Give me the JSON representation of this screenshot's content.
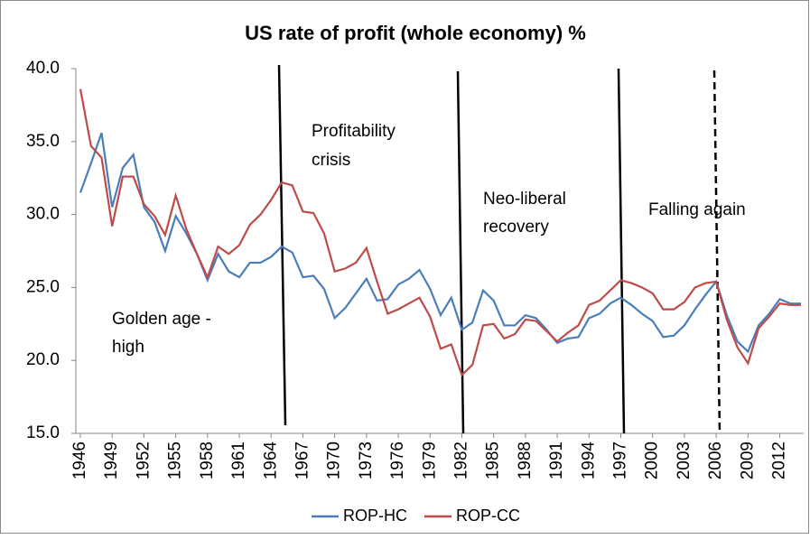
{
  "chart_data": {
    "type": "line",
    "title": "US rate of profit (whole economy) %",
    "x": [
      1946,
      1947,
      1948,
      1949,
      1950,
      1951,
      1952,
      1953,
      1954,
      1955,
      1956,
      1957,
      1958,
      1959,
      1960,
      1961,
      1962,
      1963,
      1964,
      1965,
      1966,
      1967,
      1968,
      1969,
      1970,
      1971,
      1972,
      1973,
      1974,
      1975,
      1976,
      1977,
      1978,
      1979,
      1980,
      1981,
      1982,
      1983,
      1984,
      1985,
      1986,
      1987,
      1988,
      1989,
      1990,
      1991,
      1992,
      1993,
      1994,
      1995,
      1996,
      1997,
      1998,
      1999,
      2000,
      2001,
      2002,
      2003,
      2004,
      2005,
      2006,
      2007,
      2008,
      2009,
      2010,
      2011,
      2012,
      2013,
      2014
    ],
    "series": [
      {
        "name": "ROP-HC",
        "color": "#4a7ebb",
        "values": [
          31.5,
          33.5,
          35.6,
          30.5,
          33.2,
          34.1,
          30.5,
          29.5,
          27.5,
          29.9,
          28.7,
          27.3,
          25.5,
          27.3,
          26.1,
          25.7,
          26.7,
          26.7,
          27.1,
          27.8,
          27.4,
          25.7,
          25.8,
          24.9,
          22.9,
          23.6,
          24.6,
          25.6,
          24.1,
          24.2,
          25.2,
          25.6,
          26.2,
          24.9,
          23.1,
          24.3,
          22.1,
          22.6,
          24.8,
          24.1,
          22.4,
          22.4,
          23.1,
          22.9,
          22.1,
          21.2,
          21.5,
          21.6,
          22.9,
          23.2,
          23.9,
          24.3,
          23.8,
          23.2,
          22.7,
          21.6,
          21.7,
          22.4,
          23.5,
          24.5,
          25.4,
          23.1,
          21.3,
          20.6,
          22.4,
          23.2,
          24.2,
          23.9,
          23.9
        ]
      },
      {
        "name": "ROP-CC",
        "color": "#be4b48",
        "values": [
          38.6,
          34.7,
          33.9,
          29.2,
          32.6,
          32.6,
          30.7,
          29.9,
          28.6,
          31.3,
          29.0,
          27.3,
          25.7,
          27.8,
          27.3,
          27.9,
          29.3,
          30.0,
          31.0,
          32.2,
          32.0,
          30.2,
          30.1,
          28.7,
          26.1,
          26.3,
          26.7,
          27.7,
          25.4,
          23.2,
          23.5,
          23.9,
          24.3,
          23.0,
          20.8,
          21.1,
          19.0,
          19.7,
          22.4,
          22.5,
          21.5,
          21.8,
          22.8,
          22.7,
          22.0,
          21.3,
          21.9,
          22.4,
          23.8,
          24.1,
          24.8,
          25.5,
          25.3,
          25.0,
          24.6,
          23.5,
          23.5,
          24.0,
          25.0,
          25.3,
          25.4,
          22.8,
          20.9,
          19.8,
          22.2,
          23.0,
          23.9,
          23.8,
          23.8
        ]
      }
    ],
    "xlim": [
      1946,
      2014
    ],
    "xticks": [
      1946,
      1949,
      1952,
      1955,
      1958,
      1961,
      1964,
      1967,
      1970,
      1973,
      1976,
      1979,
      1982,
      1985,
      1988,
      1991,
      1994,
      1997,
      2000,
      2003,
      2006,
      2009,
      2012
    ],
    "ylim": [
      15,
      40
    ],
    "yticks": [
      {
        "value": 15,
        "label": "15.0"
      },
      {
        "value": 20,
        "label": "20.0"
      },
      {
        "value": 25,
        "label": "25.0"
      },
      {
        "value": 30,
        "label": "30.0"
      },
      {
        "value": 35,
        "label": "35.0"
      },
      {
        "value": 40,
        "label": "40.0"
      }
    ],
    "annotations": [
      "Profitability",
      "crisis",
      "Neo-liberal",
      "recovery",
      "Falling again",
      "Golden age -",
      "high"
    ]
  }
}
